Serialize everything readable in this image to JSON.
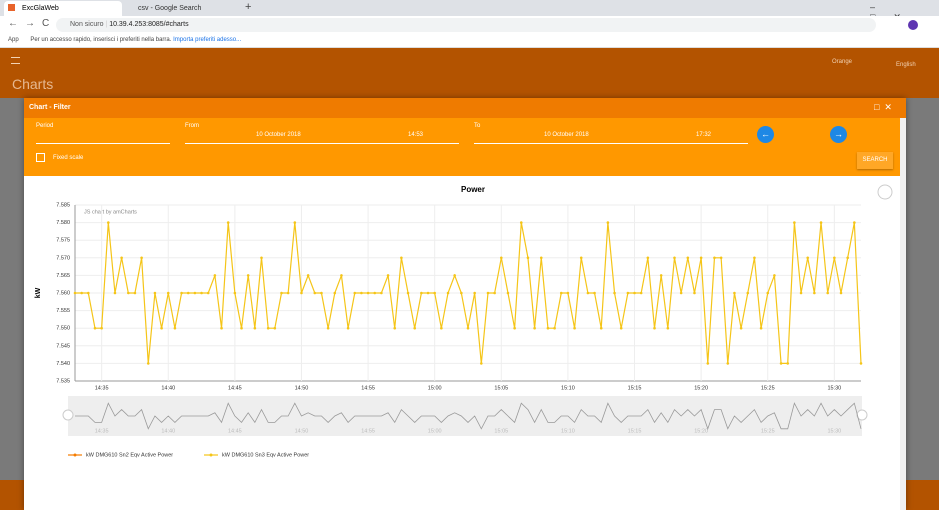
{
  "browser": {
    "tabs": [
      "ExcGlaWeb",
      "csv - Google Search"
    ],
    "security": "Non sicuro",
    "url": "10.39.4.253:8085/#charts",
    "bookmarks": {
      "apps": "App",
      "hint": "Per un accesso rapido, inserisci i preferiti nella barra.",
      "import": "Importa preferiti adesso..."
    }
  },
  "app": {
    "title": "Charts",
    "theme": "Orange",
    "language": "English"
  },
  "dialog": {
    "title": "Chart - Filter",
    "period_label": "Period",
    "from_label": "From",
    "from_date": "10 October 2018",
    "from_time": "14:53",
    "to_label": "To",
    "to_date": "10 October 2018",
    "to_time": "17:32",
    "fixed_scale": "Fixed scale",
    "search": "SEARCH"
  },
  "chart_data": {
    "type": "line",
    "title": "Power",
    "y_label": "kW",
    "credit": "JS chart by amCharts",
    "ylim": [
      7.535,
      7.585
    ],
    "yticks": [
      7.535,
      {
        "value": 7.54,
        "label": "7.540"
      },
      7.545,
      {
        "value": 7.55,
        "label": "7.550"
      },
      7.555,
      {
        "value": 7.56,
        "label": "7.560"
      },
      7.565,
      {
        "value": 7.57,
        "label": "7.570"
      },
      7.575,
      {
        "value": 7.58,
        "label": "7.580"
      },
      7.585
    ],
    "grid": true,
    "categories": [
      null,
      null,
      null,
      null,
      "14:35",
      null,
      null,
      null,
      null,
      null,
      null,
      null,
      null,
      null,
      "14:40",
      null,
      null,
      null,
      null,
      null,
      null,
      null,
      null,
      null,
      "14:45",
      null,
      null,
      null,
      null,
      null,
      null,
      null,
      null,
      null,
      "14:50",
      null,
      null,
      null,
      null,
      null,
      null,
      null,
      null,
      null,
      "14:55",
      null,
      null,
      null,
      null,
      null,
      null,
      null,
      null,
      null,
      "15:00",
      null,
      null,
      null,
      null,
      null,
      null,
      null,
      null,
      null,
      "15:05",
      null,
      null,
      null,
      null,
      null,
      null,
      null,
      null,
      null,
      "15:10",
      null,
      null,
      null,
      null,
      null,
      null,
      null,
      null,
      null,
      "15:15",
      null,
      null,
      null,
      null,
      null,
      null,
      null,
      null,
      null,
      "15:20",
      null,
      null,
      null,
      null,
      null,
      null,
      null,
      null,
      null,
      "15:25",
      null,
      null,
      null,
      null,
      null,
      null,
      null,
      null,
      null,
      "15:30",
      null,
      null,
      null,
      null
    ],
    "series": [
      {
        "name": "kW DMG610 Sn2 Eqv Active Power",
        "color": "#f57c00"
      },
      {
        "name": "kW DMG610 Sn3 Eqv Active Power",
        "color": "#f5c518",
        "values": [
          7.56,
          7.56,
          7.56,
          7.55,
          7.55,
          7.58,
          7.56,
          7.57,
          7.56,
          7.56,
          7.57,
          7.54,
          7.56,
          7.55,
          7.56,
          7.55,
          7.56,
          7.56,
          7.56,
          7.56,
          7.56,
          7.565,
          7.55,
          7.58,
          7.56,
          7.55,
          7.565,
          7.55,
          7.57,
          7.55,
          7.55,
          7.56,
          7.56,
          7.58,
          7.56,
          7.565,
          7.56,
          7.56,
          7.55,
          7.56,
          7.565,
          7.55,
          7.56,
          7.56,
          7.56,
          7.56,
          7.56,
          7.565,
          7.55,
          7.57,
          7.56,
          7.55,
          7.56,
          7.56,
          7.56,
          7.55,
          7.56,
          7.565,
          7.56,
          7.55,
          7.56,
          7.54,
          7.56,
          7.56,
          7.57,
          7.56,
          7.55,
          7.58,
          7.57,
          7.55,
          7.57,
          7.55,
          7.55,
          7.56,
          7.56,
          7.55,
          7.57,
          7.56,
          7.56,
          7.55,
          7.58,
          7.56,
          7.55,
          7.56,
          7.56,
          7.56,
          7.57,
          7.55,
          7.565,
          7.55,
          7.57,
          7.56,
          7.57,
          7.56,
          7.57,
          7.54,
          7.57,
          7.57,
          7.54,
          7.56,
          7.55,
          7.56,
          7.57,
          7.55,
          7.56,
          7.565,
          7.54,
          7.54,
          7.58,
          7.56,
          7.57,
          7.56,
          7.58,
          7.56,
          7.57,
          7.56,
          7.57,
          7.58,
          7.54
        ]
      }
    ]
  }
}
